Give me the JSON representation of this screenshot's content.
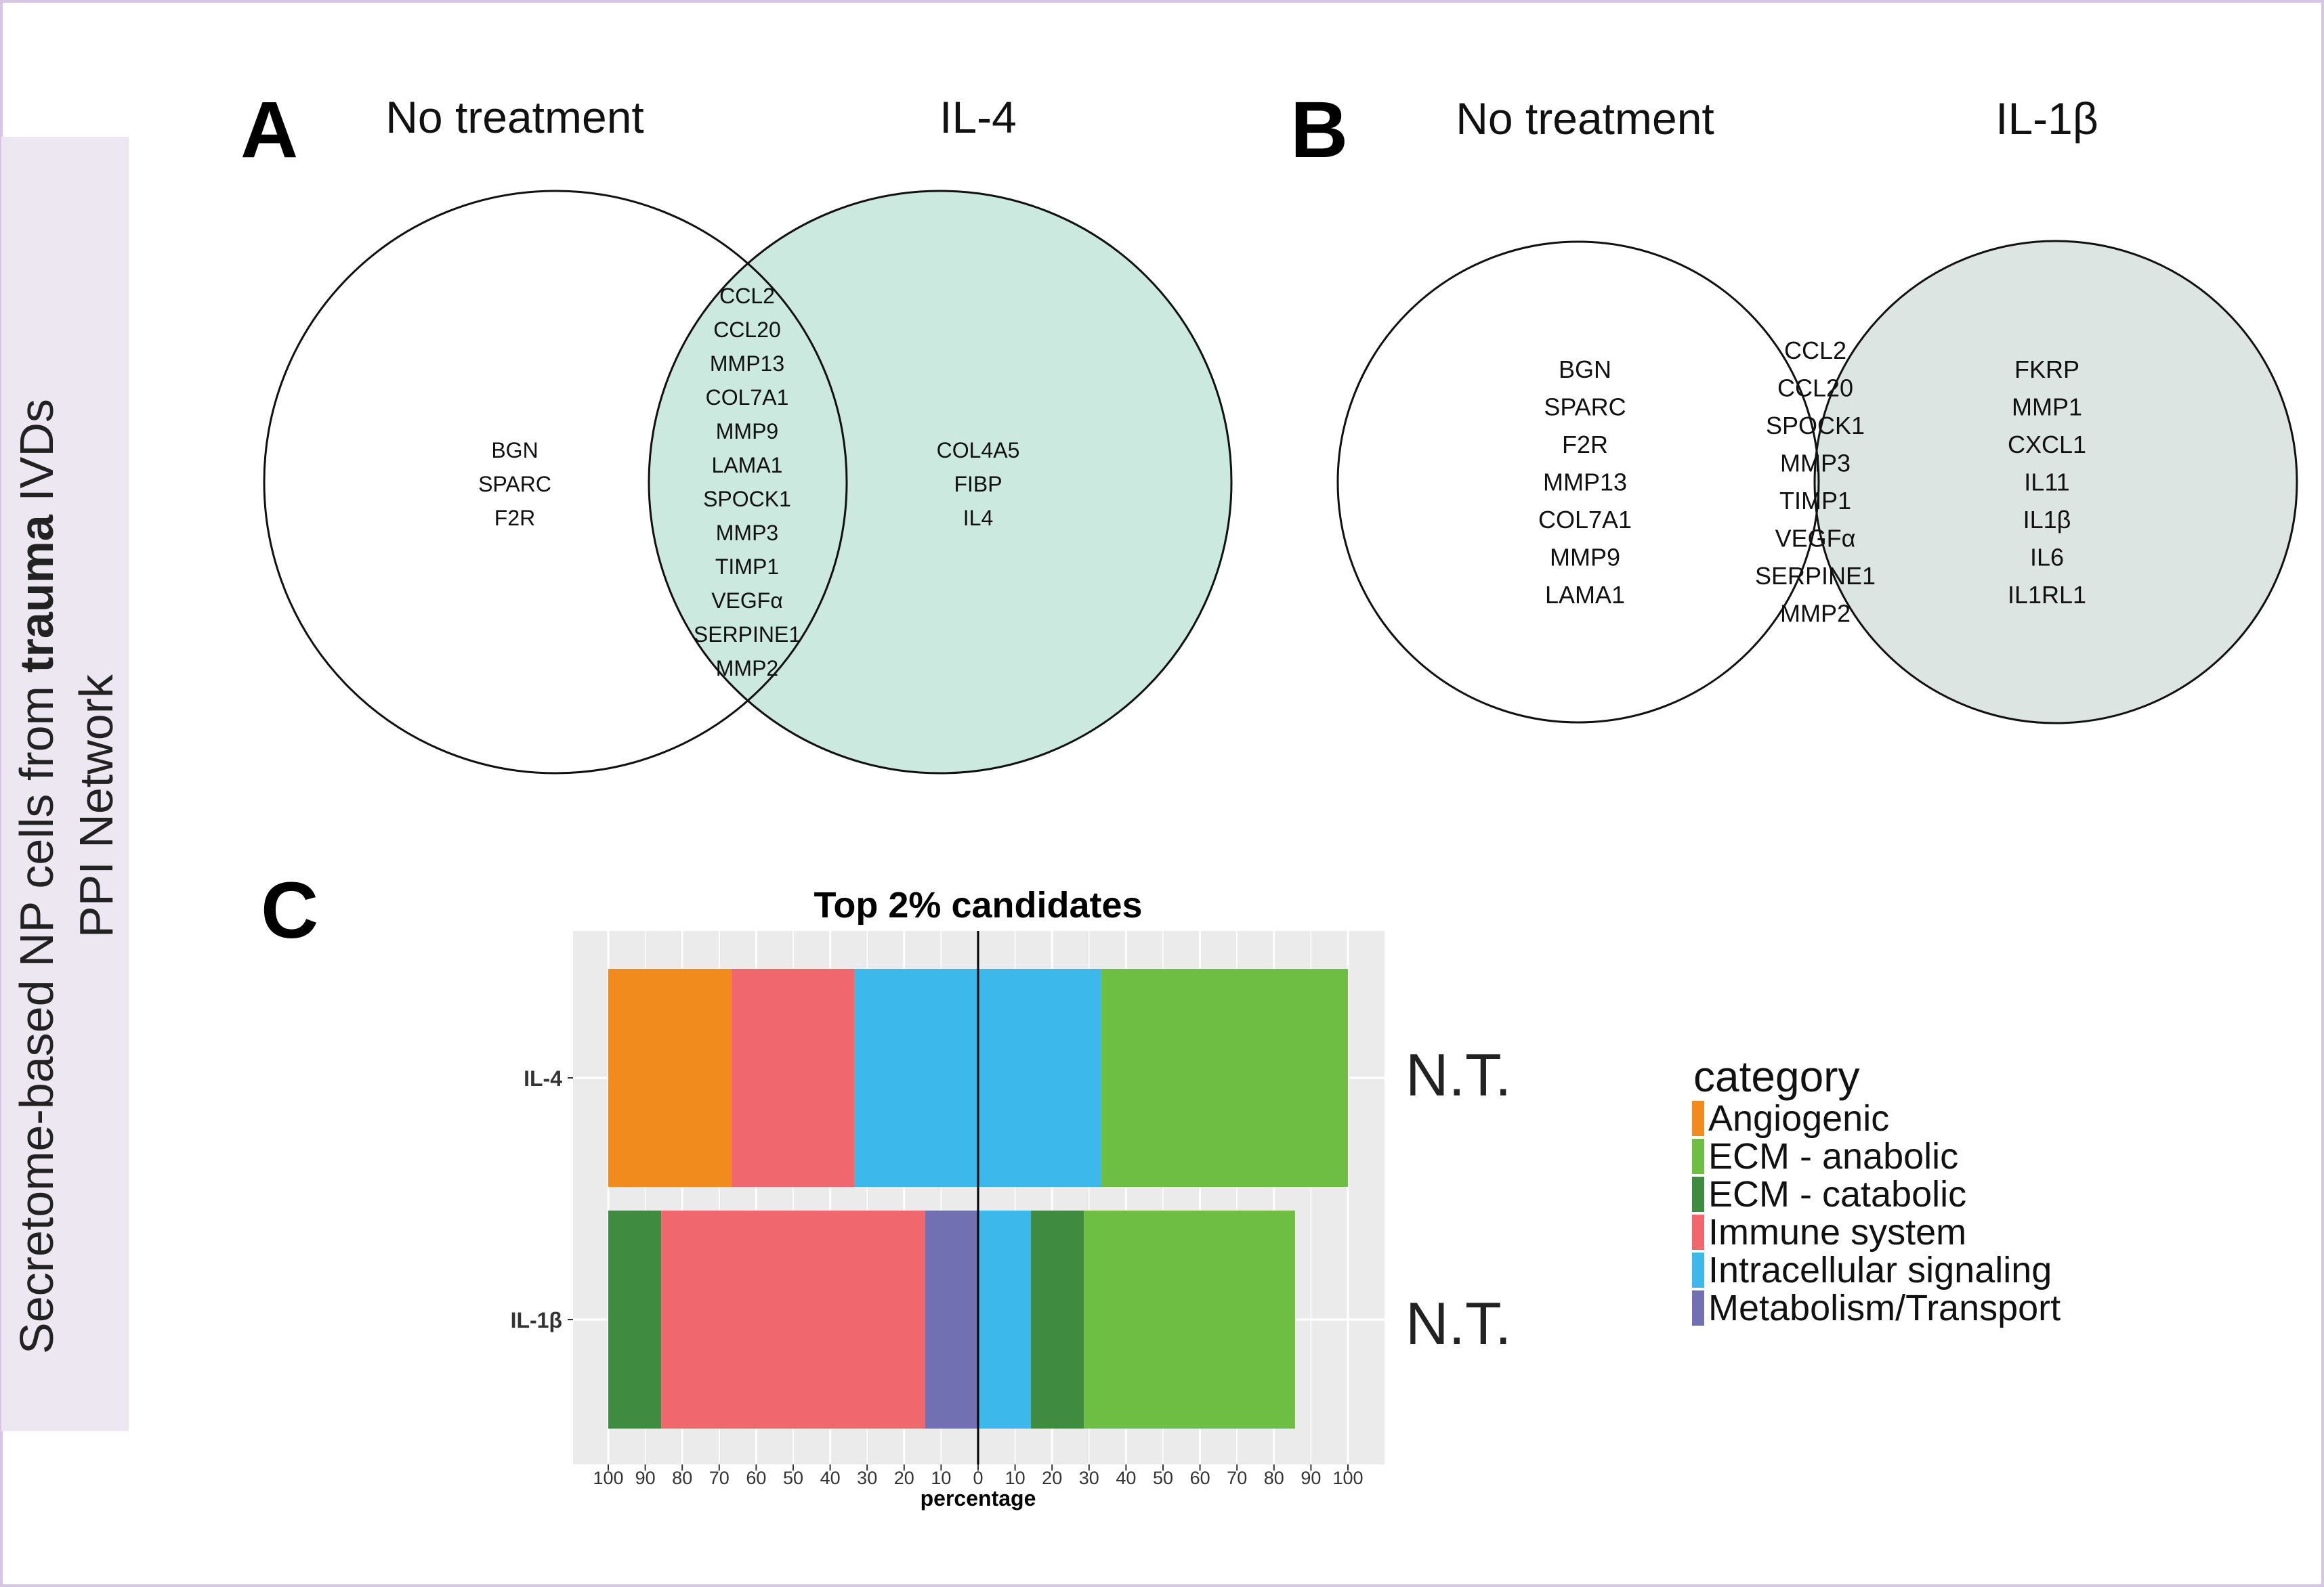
{
  "side_label": {
    "line1_prefix": "Secretome-based NP cells from ",
    "line1_bold": "trauma",
    "line1_suffix": " IVDs",
    "line2": "PPI Network"
  },
  "panel_a": {
    "letter": "A",
    "left_title": "No treatment",
    "right_title": "IL-4",
    "right_fill": "#cce9e0",
    "left_only": [
      "BGN",
      "SPARC",
      "F2R"
    ],
    "shared": [
      "CCL2",
      "CCL20",
      "MMP13",
      "COL7A1",
      "MMP9",
      "LAMA1",
      "SPOCK1",
      "MMP3",
      "TIMP1",
      "VEGFα",
      "SERPINE1",
      "MMP2"
    ],
    "right_only": [
      "COL4A5",
      "FIBP",
      "IL4"
    ]
  },
  "panel_b": {
    "letter": "B",
    "left_title": "No treatment",
    "right_title": "IL-1β",
    "right_fill": "#dde5e3",
    "left_only": [
      "BGN",
      "SPARC",
      "F2R",
      "MMP13",
      "COL7A1",
      "MMP9",
      "LAMA1"
    ],
    "shared": [
      "CCL2",
      "CCL20",
      "SPOCK1",
      "MMP3",
      "TIMP1",
      "VEGFα",
      "SERPINE1",
      "MMP2"
    ],
    "right_only": [
      "FKRP",
      "MMP1",
      "CXCL1",
      "IL11",
      "IL1β",
      "IL6",
      "IL1RL1"
    ]
  },
  "panel_c": {
    "letter": "C",
    "nt_labels": [
      "N.T.",
      "N.T."
    ]
  },
  "chart_data": {
    "type": "bar",
    "orientation": "horizontal",
    "stacked": "diverging",
    "title": "Top 2% candidates",
    "xlabel": "percentage",
    "ylabel": "",
    "xlim": [
      -100,
      100
    ],
    "xticks": [
      -100,
      -90,
      -80,
      -70,
      -60,
      -50,
      -40,
      -30,
      -20,
      -10,
      0,
      10,
      20,
      30,
      40,
      50,
      60,
      70,
      80,
      90,
      100
    ],
    "xtick_labels": [
      "100",
      "90",
      "80",
      "70",
      "60",
      "50",
      "40",
      "30",
      "20",
      "10",
      "0",
      "10",
      "20",
      "30",
      "40",
      "50",
      "60",
      "70",
      "80",
      "90",
      "100"
    ],
    "grid": true,
    "legend": {
      "title": "category",
      "position": "right",
      "entries": [
        {
          "name": "Angiogenic",
          "color": "#f28b1e"
        },
        {
          "name": "ECM - anabolic",
          "color": "#6fbe44"
        },
        {
          "name": "ECM - catabolic",
          "color": "#3f8b3f"
        },
        {
          "name": "Immune system",
          "color": "#f0686d"
        },
        {
          "name": "Intracellular signaling",
          "color": "#3cb9ea"
        },
        {
          "name": "Metabolism/Transport",
          "color": "#7170b3"
        }
      ]
    },
    "categories": [
      "IL-4",
      "IL-1β"
    ],
    "bars": [
      {
        "category": "IL-4",
        "left": [
          {
            "category": "Angiogenic",
            "percent": 33.3
          },
          {
            "category": "Immune system",
            "percent": 33.3
          },
          {
            "category": "Intracellular signaling",
            "percent": 33.3
          }
        ],
        "right": [
          {
            "category": "Intracellular signaling",
            "percent": 33.3
          },
          {
            "category": "ECM - anabolic",
            "percent": 66.7
          }
        ]
      },
      {
        "category": "IL-1β",
        "left": [
          {
            "category": "ECM - catabolic",
            "percent": 14.3
          },
          {
            "category": "Immune system",
            "percent": 71.4
          },
          {
            "category": "Metabolism/Transport",
            "percent": 14.3
          }
        ],
        "right": [
          {
            "category": "Intracellular signaling",
            "percent": 14.3
          },
          {
            "category": "ECM - catabolic",
            "percent": 14.3
          },
          {
            "category": "ECM - anabolic",
            "percent": 57.1
          }
        ]
      }
    ]
  }
}
